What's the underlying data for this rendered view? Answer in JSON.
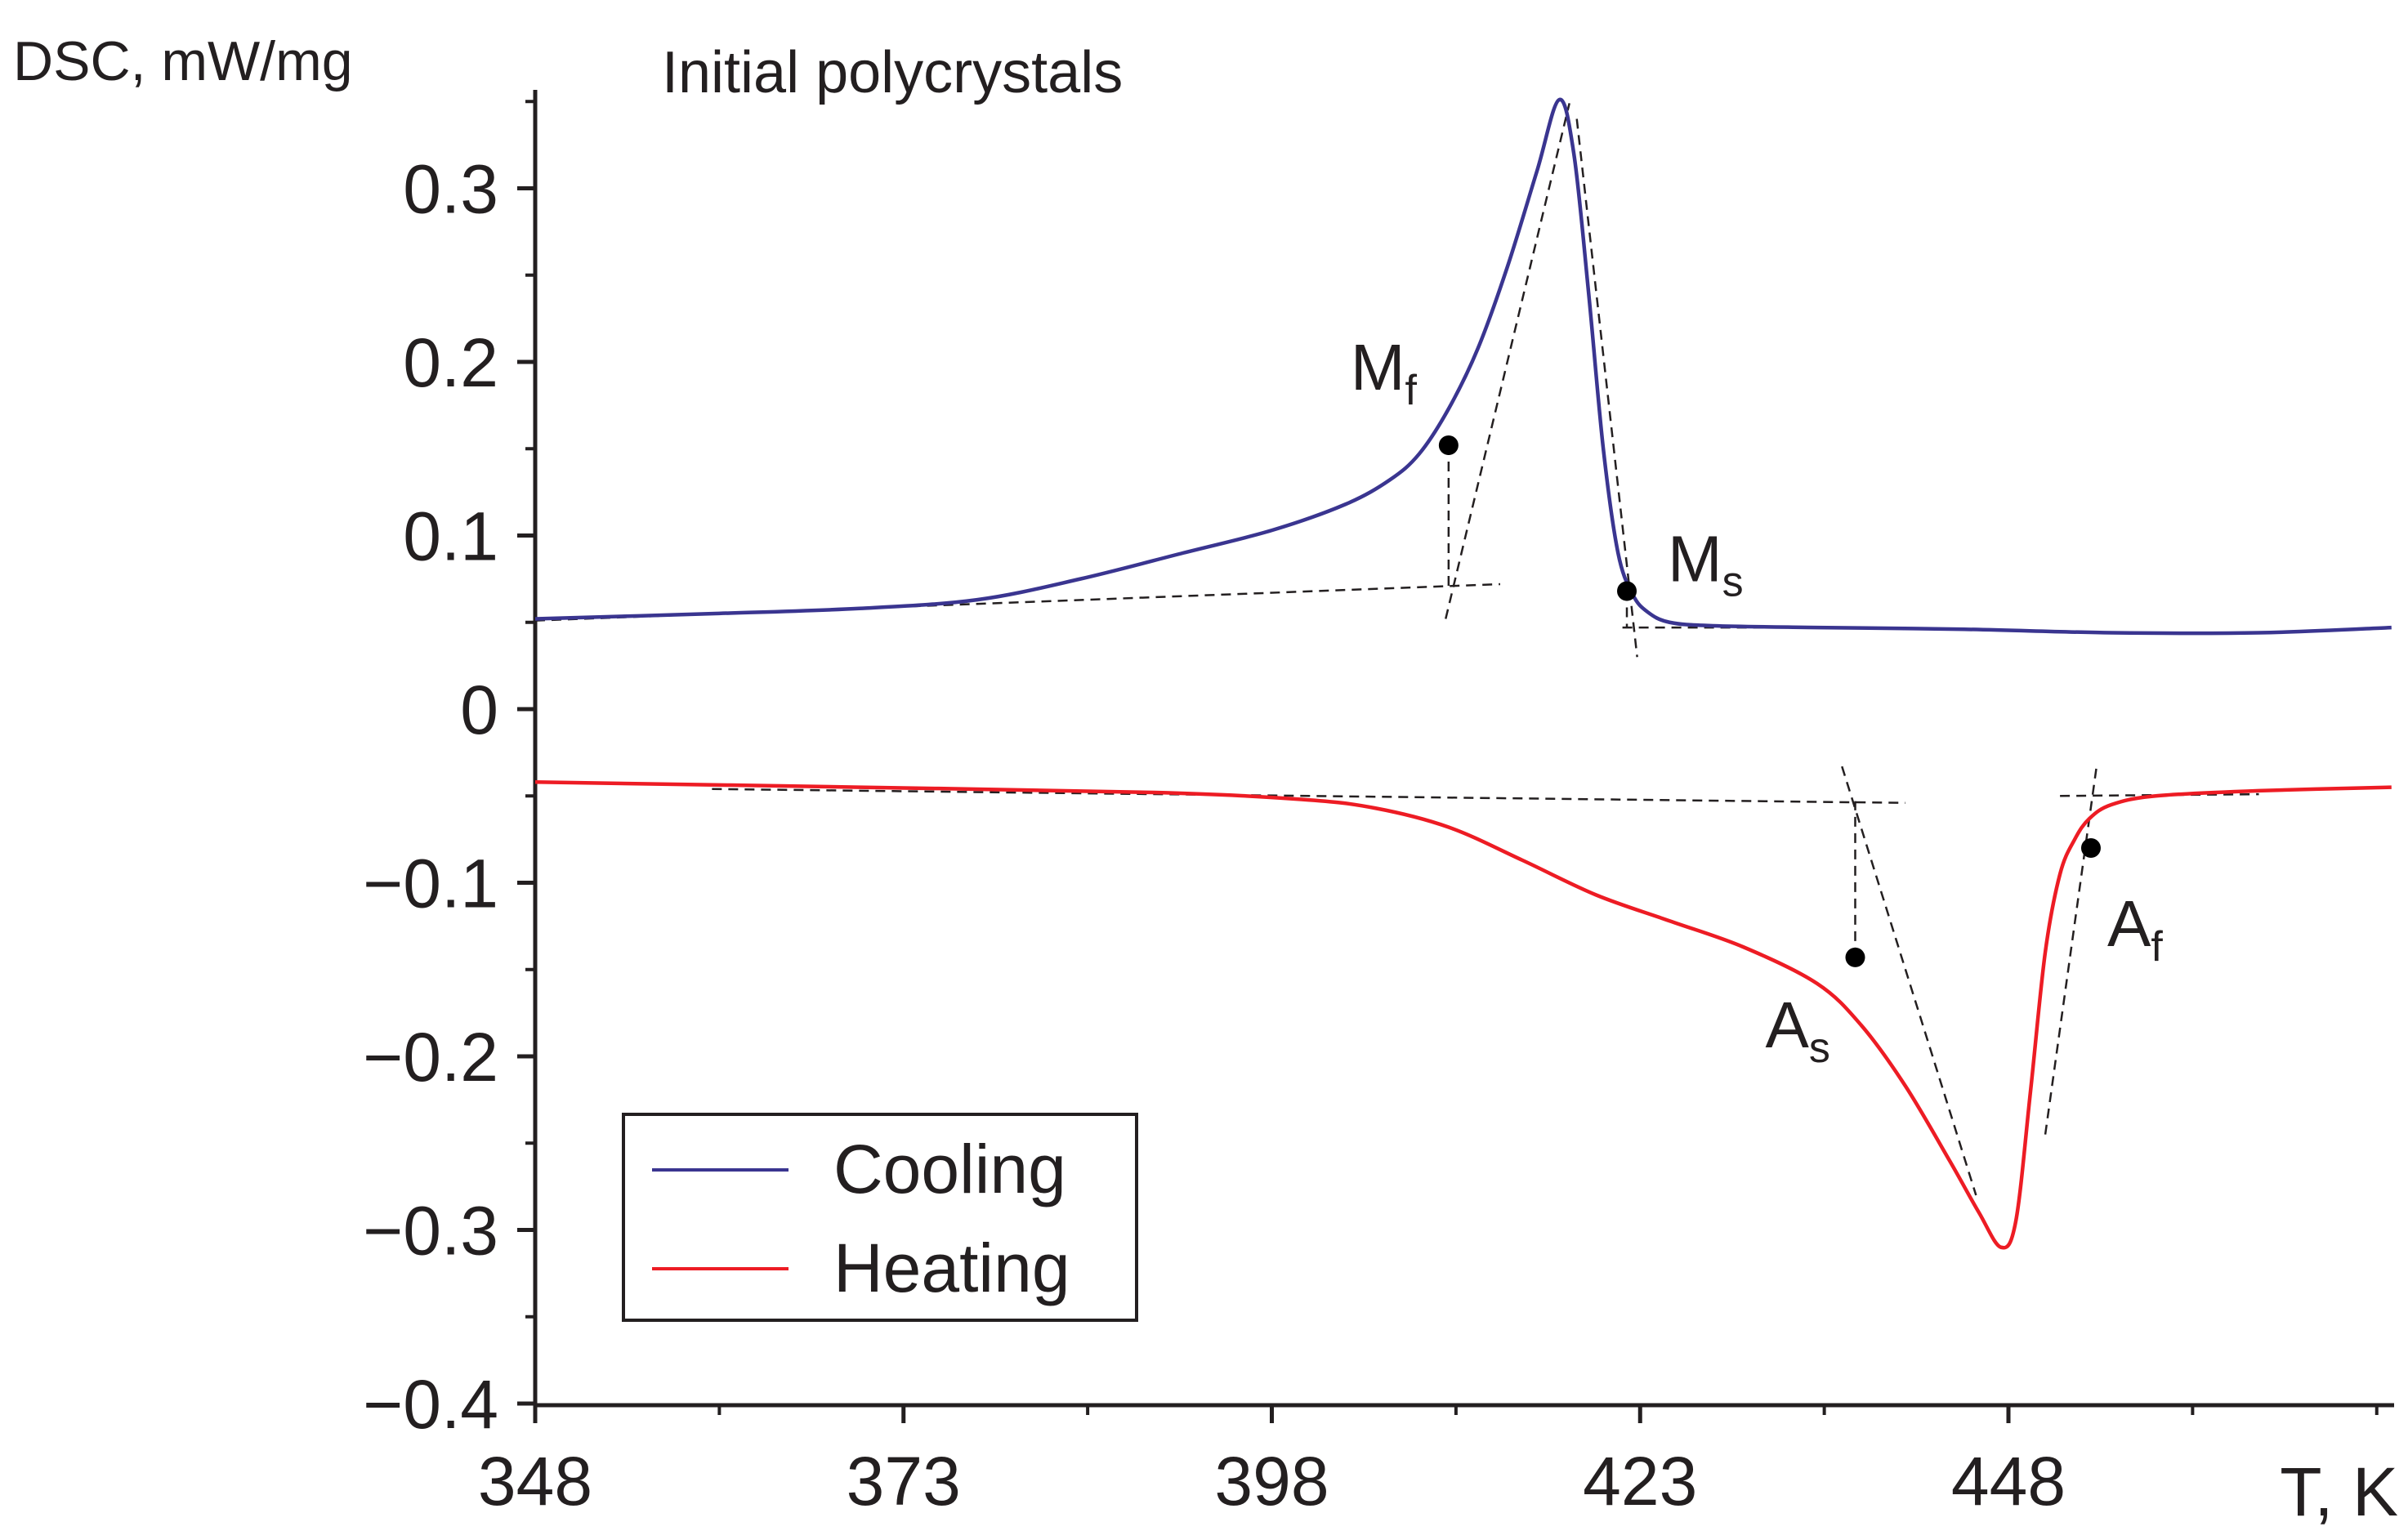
{
  "chart_data": {
    "type": "line",
    "title": "Initial polycrystals",
    "xlabel": "T, K",
    "ylabel": "DSC, mW/mg",
    "xlim": [
      348,
      474
    ],
    "ylim": [
      -0.4,
      0.36
    ],
    "x_ticks": [
      348,
      373,
      398,
      423,
      448
    ],
    "x_tick_labels": [
      "348",
      "373",
      "398",
      "423",
      "448"
    ],
    "y_ticks": [
      -0.4,
      -0.3,
      -0.2,
      -0.1,
      0,
      0.1,
      0.2,
      0.3
    ],
    "y_tick_labels": [
      "−0.4",
      "−0.3",
      "−0.2",
      "−0.1",
      "0",
      "0.1",
      "0.2",
      "0.3"
    ],
    "grid": false,
    "legend": {
      "position": "bottom-left",
      "entries": [
        "Cooling",
        "Heating"
      ]
    },
    "series": [
      {
        "name": "Cooling",
        "color": "#3a3590",
        "x": [
          348,
          360,
          370,
          378,
          385,
          392,
          398,
          403,
          406,
          408,
          410,
          412,
          414,
          416,
          417.5,
          418.5,
          419.5,
          420.5,
          421.5,
          422.5,
          423.5,
          425,
          428,
          435,
          445,
          455,
          465,
          474
        ],
        "y": [
          0.052,
          0.055,
          0.058,
          0.063,
          0.075,
          0.09,
          0.103,
          0.118,
          0.132,
          0.147,
          0.173,
          0.208,
          0.255,
          0.31,
          0.351,
          0.32,
          0.24,
          0.15,
          0.09,
          0.066,
          0.056,
          0.05,
          0.048,
          0.047,
          0.046,
          0.044,
          0.044,
          0.047
        ]
      },
      {
        "name": "Heating",
        "color": "#ed1c24",
        "x": [
          348,
          370,
          390,
          400,
          405,
          410,
          415,
          420,
          425,
          430,
          435,
          438,
          441,
          444,
          446,
          447.5,
          448.5,
          449.5,
          450.5,
          451.5,
          452.5,
          453.5,
          455,
          458,
          465,
          474
        ],
        "y": [
          -0.042,
          -0.045,
          -0.048,
          -0.052,
          -0.057,
          -0.068,
          -0.087,
          -0.107,
          -0.122,
          -0.137,
          -0.158,
          -0.182,
          -0.217,
          -0.26,
          -0.29,
          -0.31,
          -0.295,
          -0.22,
          -0.14,
          -0.095,
          -0.075,
          -0.063,
          -0.055,
          -0.05,
          -0.047,
          -0.045
        ]
      }
    ],
    "points": [
      {
        "name": "Mf",
        "label": "M",
        "sub": "f",
        "x": 410,
        "y": 0.152
      },
      {
        "name": "Ms",
        "label": "M",
        "sub": "s",
        "x": 422.1,
        "y": 0.068
      },
      {
        "name": "As",
        "label": "A",
        "sub": "s",
        "x": 437.6,
        "y": -0.143
      },
      {
        "name": "Af",
        "label": "A",
        "sub": "f",
        "x": 453.6,
        "y": -0.08
      }
    ],
    "construction_lines": [
      {
        "from": [
          348,
          0.051
        ],
        "to": [
          413.5,
          0.072
        ]
      },
      {
        "from": [
          409.8,
          0.052
        ],
        "to": [
          418.2,
          0.349
        ]
      },
      {
        "from": [
          410,
          0.152
        ],
        "to": [
          410,
          0.068
        ]
      },
      {
        "from": [
          418.7,
          0.34
        ],
        "to": [
          422.8,
          0.03
        ]
      },
      {
        "from": [
          421.8,
          0.047
        ],
        "to": [
          432,
          0.047
        ]
      },
      {
        "from": [
          422.1,
          0.068
        ],
        "to": [
          422.1,
          0.047
        ]
      },
      {
        "from": [
          360,
          -0.046
        ],
        "to": [
          441,
          -0.054
        ]
      },
      {
        "from": [
          436.7,
          -0.033
        ],
        "to": [
          445.8,
          -0.28
        ]
      },
      {
        "from": [
          437.6,
          -0.143
        ],
        "to": [
          437.6,
          -0.053
        ]
      },
      {
        "from": [
          450.5,
          -0.245
        ],
        "to": [
          454,
          -0.032
        ]
      },
      {
        "from": [
          451.5,
          -0.05
        ],
        "to": [
          465,
          -0.049
        ]
      }
    ]
  }
}
